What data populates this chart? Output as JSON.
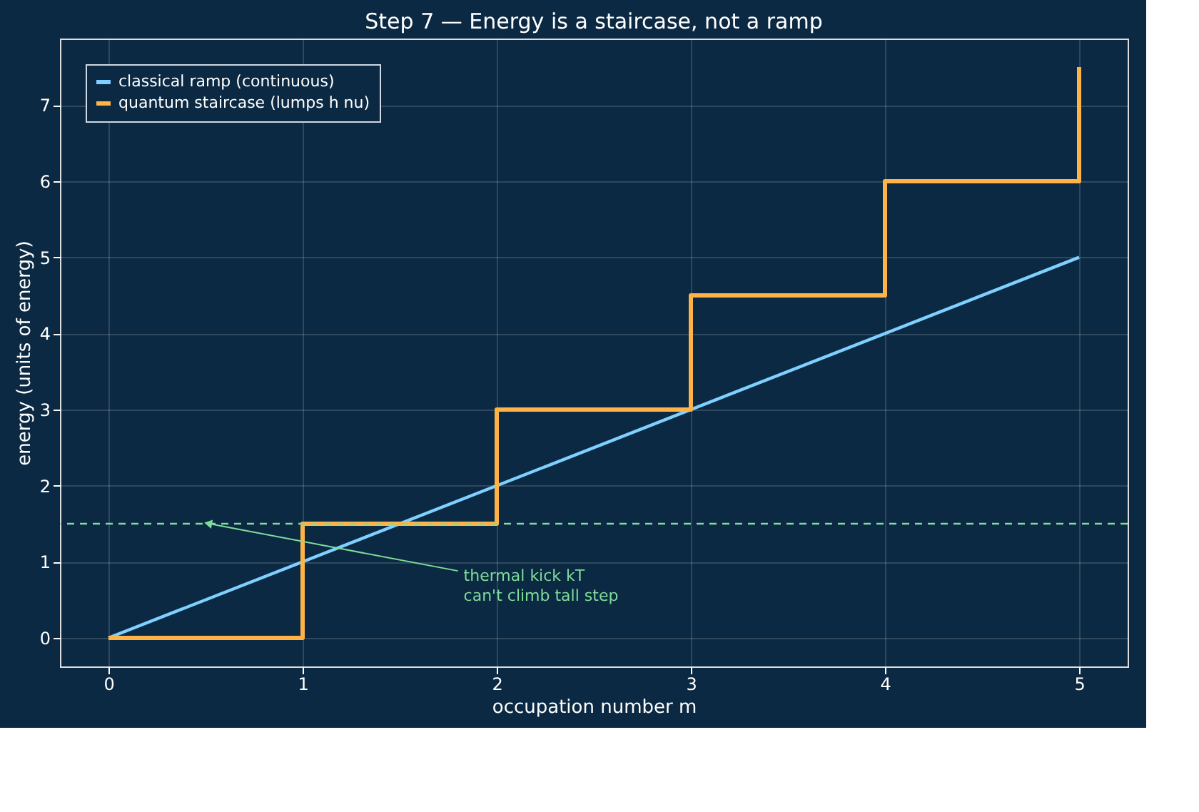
{
  "chart_data": {
    "type": "line",
    "title": "Step 7 — Energy is a staircase, not a ramp",
    "xlabel": "occupation number  m",
    "ylabel": "energy  (units of energy)",
    "series": [
      {
        "name": "classical ramp (continuous)",
        "color": "#7fd0ff",
        "type": "line",
        "x": [
          0,
          5
        ],
        "values": [
          0,
          5
        ]
      },
      {
        "name": "quantum staircase (lumps h nu)",
        "color": "#ffb347",
        "type": "step",
        "x": [
          0,
          1,
          2,
          3,
          4,
          5
        ],
        "values": [
          0,
          1.5,
          3,
          4.5,
          6,
          7.5
        ]
      }
    ],
    "xlim": [
      -0.25,
      5.25
    ],
    "ylim": [
      -0.375,
      7.875
    ],
    "xticks": [
      0,
      1,
      2,
      3,
      4,
      5
    ],
    "yticks": [
      0,
      1,
      2,
      3,
      4,
      5,
      6,
      7
    ],
    "ref_lines": [
      {
        "axis": "y",
        "value": 1.5,
        "color": "#7fdc9a",
        "line_style": "dashed"
      }
    ],
    "annotations": [
      {
        "text": "thermal kick kT\ncan't climb tall step",
        "x": 0.52,
        "y": 1.5
      }
    ],
    "grid": true,
    "legend": "top left",
    "marker": "none",
    "line_style": "solid"
  }
}
